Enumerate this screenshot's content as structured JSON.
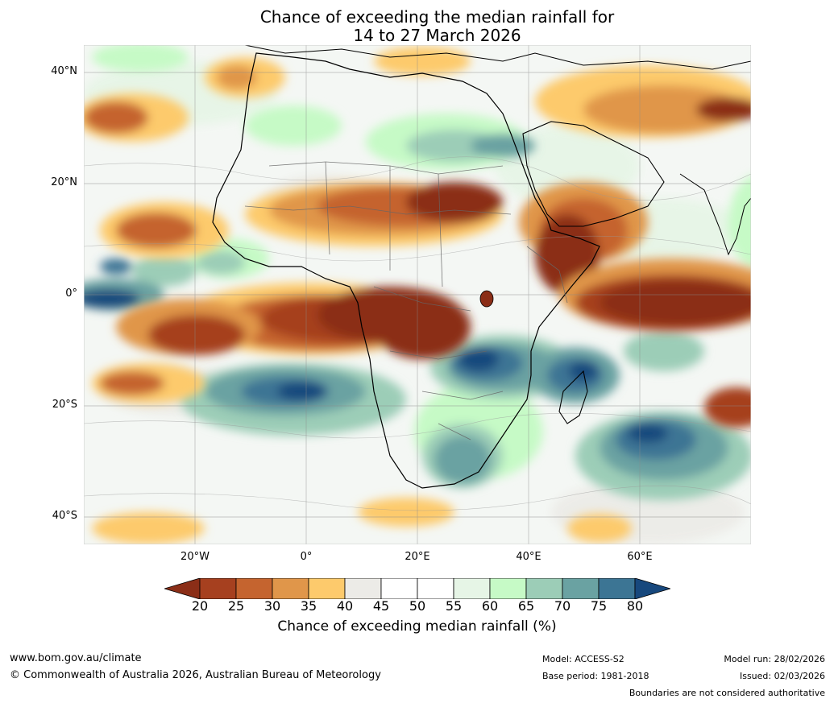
{
  "title": {
    "line1": "Chance of exceeding the median rainfall for",
    "line2": "14 to 27 March 2026"
  },
  "map": {
    "region": "Africa",
    "lat_range": [
      -45,
      45
    ],
    "lon_range": [
      -40,
      80
    ],
    "lat_ticks": [
      "40°N",
      "20°N",
      "0°",
      "20°S",
      "40°S"
    ],
    "lon_ticks": [
      "20°W",
      "0°",
      "20°E",
      "40°E",
      "60°E"
    ],
    "dry_regions": [
      "West Sahel",
      "Sudan",
      "Horn of Africa",
      "Congo Basin",
      "Equatorial Indian Ocean",
      "Equatorial Atlantic"
    ],
    "wet_regions": [
      "Southern Africa",
      "Mozambique Channel",
      "Madagascar",
      "South Atlantic",
      "Southwest Indian Ocean"
    ]
  },
  "colorbar": {
    "ticks": [
      "20",
      "25",
      "30",
      "35",
      "40",
      "45",
      "50",
      "55",
      "60",
      "65",
      "70",
      "75",
      "80"
    ],
    "colors": [
      "#8b2e17",
      "#a6401f",
      "#c5642f",
      "#e0964a",
      "#fdca6c",
      "#ecebe7",
      "#ffffff",
      "#ffffff",
      "#e6f5e6",
      "#c6fac6",
      "#9ccdb7",
      "#6aa2a2",
      "#3c7594",
      "#17487d"
    ],
    "label": "Chance of exceeding median rainfall (%)"
  },
  "footer": {
    "website": "www.bom.gov.au/climate",
    "copyright": "© Commonwealth of Australia 2026, Australian Bureau of Meteorology",
    "model": "Model: ACCESS-S2",
    "base_period": "Base period: 1981-2018",
    "model_run": "Model run: 28/02/2026",
    "issued": "Issued: 02/03/2026",
    "disclaimer": "Boundaries are not considered authoritative"
  }
}
